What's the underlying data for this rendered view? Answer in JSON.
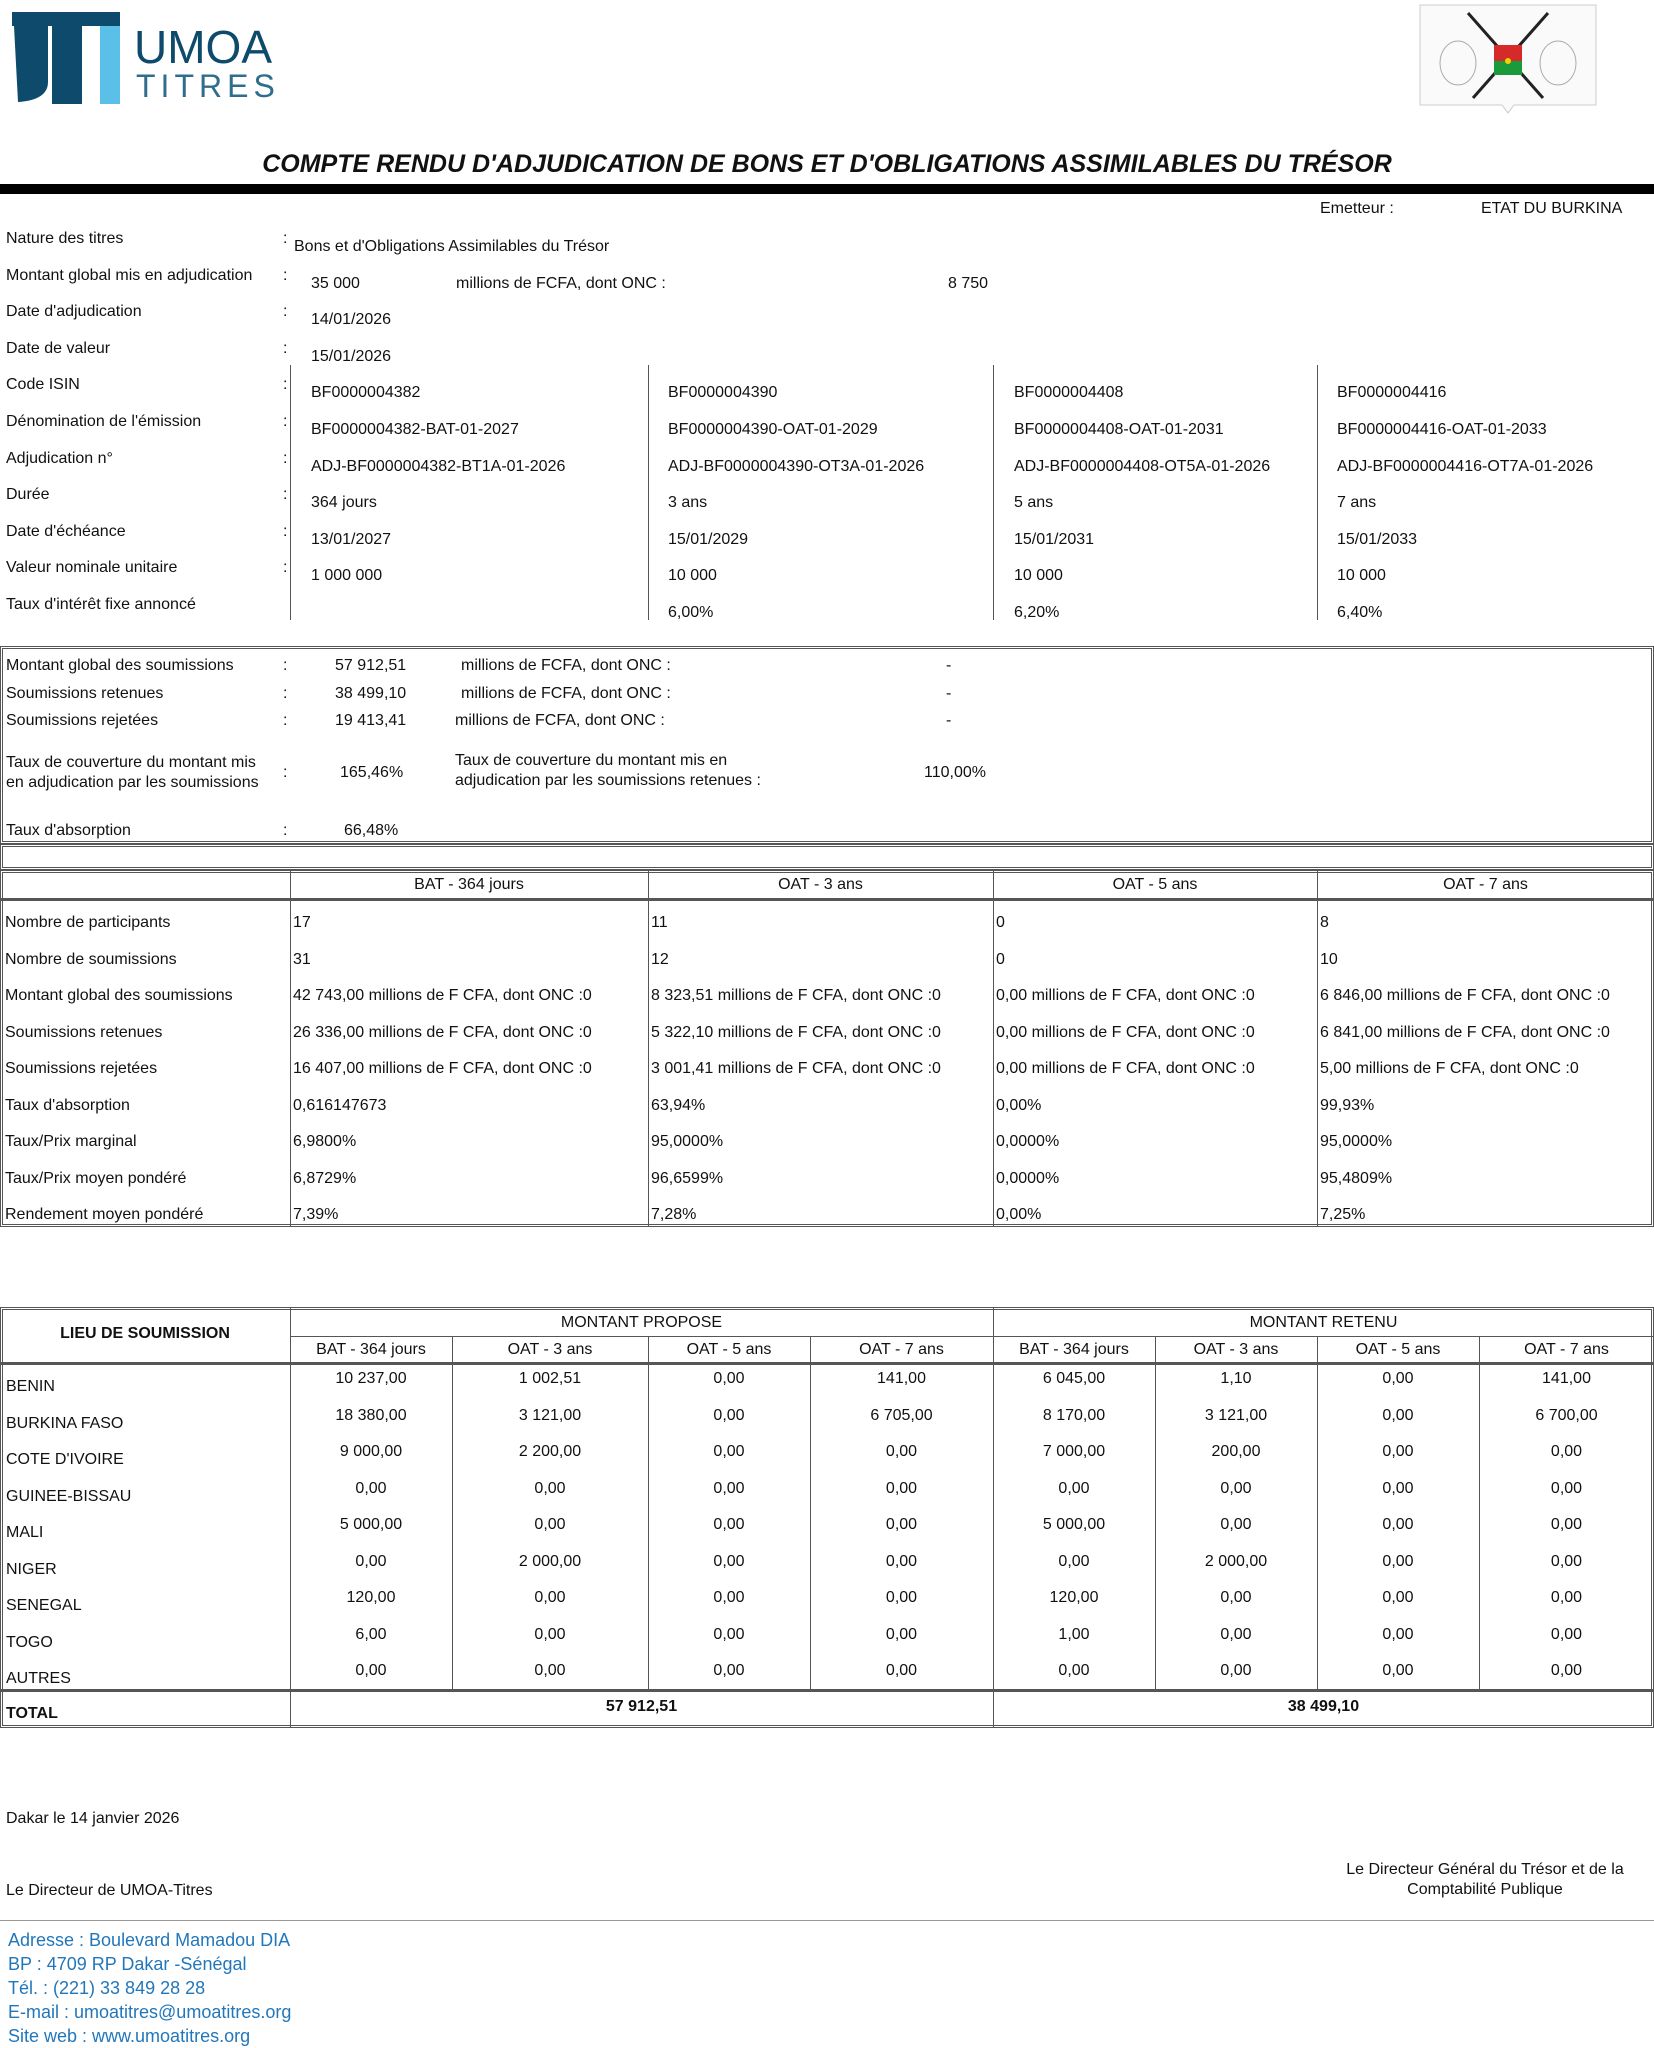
{
  "header": {
    "logo_text_1": "UMOA",
    "logo_text_2": "TITRES",
    "title": "COMPTE RENDU D'ADJUDICATION DE BONS ET D'OBLIGATIONS ASSIMILABLES DU TRÉSOR",
    "emetteur_label": "Emetteur :",
    "emetteur_value": "ETAT DU BURKINA",
    "brand_color": "#0d4a6b",
    "brand_light": "#5bc0e8"
  },
  "info": {
    "nature_label": "Nature des titres",
    "nature_value": "Bons et d'Obligations Assimilables du Trésor",
    "montant_label": "Montant global mis en adjudication",
    "montant_value": "35 000",
    "montant_unit": "millions de FCFA, dont ONC :",
    "montant_onc": "8 750",
    "date_adj_label": "Date d'adjudication",
    "date_adj_value": "14/01/2026",
    "date_val_label": "Date de valeur",
    "date_val_value": "15/01/2026",
    "rows": [
      {
        "label": "Code ISIN",
        "values": [
          "BF0000004382",
          "BF0000004390",
          "BF0000004408",
          "BF0000004416"
        ]
      },
      {
        "label": "Dénomination de l'émission",
        "values": [
          "BF0000004382-BAT-01-2027",
          "BF0000004390-OAT-01-2029",
          "BF0000004408-OAT-01-2031",
          "BF0000004416-OAT-01-2033"
        ]
      },
      {
        "label": "Adjudication n°",
        "values": [
          "ADJ-BF0000004382-BT1A-01-2026",
          "ADJ-BF0000004390-OT3A-01-2026",
          "ADJ-BF0000004408-OT5A-01-2026",
          "ADJ-BF0000004416-OT7A-01-2026"
        ]
      },
      {
        "label": "Durée",
        "values": [
          "364 jours",
          "3 ans",
          "5 ans",
          "7 ans"
        ]
      },
      {
        "label": "Date d'échéance",
        "values": [
          "13/01/2027",
          "15/01/2029",
          "15/01/2031",
          "15/01/2033"
        ]
      },
      {
        "label": "Valeur nominale unitaire",
        "values": [
          "1 000 000",
          "10 000",
          "10 000",
          "10 000"
        ]
      },
      {
        "label": "Taux d'intérêt fixe annoncé",
        "values": [
          "",
          "6,00%",
          "6,20%",
          "6,40%"
        ]
      }
    ]
  },
  "summary": {
    "rows": [
      {
        "label": "Montant global des soumissions",
        "value": "57 912,51",
        "unit": "millions de FCFA, dont ONC :",
        "onc": "-"
      },
      {
        "label": "Soumissions retenues",
        "value": "38 499,10",
        "unit": "millions de FCFA, dont ONC :",
        "onc": "-"
      },
      {
        "label": "Soumissions rejetées",
        "value": "19 413,41",
        "unit": "millions de FCFA, dont ONC :",
        "onc": "-"
      }
    ],
    "couv_label_1": "Taux de couverture du montant mis",
    "couv_label_2": "en adjudication par les soumissions",
    "couv_value": "165,46%",
    "couv_ret_label_1": "Taux de couverture du montant mis en",
    "couv_ret_label_2": "adjudication par les soumissions retenues :",
    "couv_ret_value": "110,00%",
    "absorption_label": "Taux d'absorption",
    "absorption_value": "66,48%"
  },
  "results": {
    "columns": [
      "BAT - 364 jours",
      "OAT - 3 ans",
      "OAT - 5 ans",
      "OAT - 7 ans"
    ],
    "rows": [
      {
        "label": "Nombre de participants",
        "values": [
          "17",
          "11",
          "0",
          "8"
        ]
      },
      {
        "label": "Nombre de soumissions",
        "values": [
          "31",
          "12",
          "0",
          "10"
        ]
      },
      {
        "label": "Montant global des soumissions",
        "values": [
          "42 743,00 millions de F CFA, dont ONC :0",
          "8 323,51 millions de F CFA, dont ONC :0",
          "0,00 millions de F CFA, dont ONC :0",
          "6 846,00 millions de F CFA, dont ONC :0"
        ]
      },
      {
        "label": "Soumissions retenues",
        "values": [
          "26 336,00 millions de F CFA, dont ONC :0",
          "5 322,10 millions de F CFA, dont ONC :0",
          "0,00 millions de F CFA, dont ONC :0",
          "6 841,00 millions de F CFA, dont ONC :0"
        ]
      },
      {
        "label": "Soumissions rejetées",
        "values": [
          "16 407,00 millions de F CFA, dont ONC :0",
          "3 001,41 millions de F CFA, dont ONC :0",
          "0,00 millions de F CFA, dont ONC :0",
          "5,00 millions de F CFA, dont ONC :0"
        ]
      },
      {
        "label": "Taux d'absorption",
        "values": [
          "0,616147673",
          "63,94%",
          "0,00%",
          "99,93%"
        ]
      },
      {
        "label": "Taux/Prix marginal",
        "values": [
          "6,9800%",
          "95,0000%",
          "0,0000%",
          "95,0000%"
        ]
      },
      {
        "label": "Taux/Prix moyen pondéré",
        "values": [
          "6,8729%",
          "96,6599%",
          "0,0000%",
          "95,4809%"
        ]
      },
      {
        "label": "Rendement moyen pondéré",
        "values": [
          "7,39%",
          "7,28%",
          "0,00%",
          "7,25%"
        ]
      }
    ]
  },
  "lieu": {
    "header": "LIEU DE SOUMISSION",
    "group_propose": "MONTANT PROPOSE",
    "group_retenu": "MONTANT RETENU",
    "columns": [
      "BAT - 364 jours",
      "OAT - 3 ans",
      "OAT - 5 ans",
      "OAT - 7 ans",
      "BAT - 364 jours",
      "OAT - 3 ans",
      "OAT - 5 ans",
      "OAT - 7 ans"
    ],
    "rows": [
      {
        "label": "BENIN",
        "values": [
          "10 237,00",
          "1 002,51",
          "0,00",
          "141,00",
          "6 045,00",
          "1,10",
          "0,00",
          "141,00"
        ]
      },
      {
        "label": "BURKINA FASO",
        "values": [
          "18 380,00",
          "3 121,00",
          "0,00",
          "6 705,00",
          "8 170,00",
          "3 121,00",
          "0,00",
          "6 700,00"
        ]
      },
      {
        "label": "COTE D'IVOIRE",
        "values": [
          "9 000,00",
          "2 200,00",
          "0,00",
          "0,00",
          "7 000,00",
          "200,00",
          "0,00",
          "0,00"
        ]
      },
      {
        "label": "GUINEE-BISSAU",
        "values": [
          "0,00",
          "0,00",
          "0,00",
          "0,00",
          "0,00",
          "0,00",
          "0,00",
          "0,00"
        ]
      },
      {
        "label": "MALI",
        "values": [
          "5 000,00",
          "0,00",
          "0,00",
          "0,00",
          "5 000,00",
          "0,00",
          "0,00",
          "0,00"
        ]
      },
      {
        "label": "NIGER",
        "values": [
          "0,00",
          "2 000,00",
          "0,00",
          "0,00",
          "0,00",
          "2 000,00",
          "0,00",
          "0,00"
        ]
      },
      {
        "label": "SENEGAL",
        "values": [
          "120,00",
          "0,00",
          "0,00",
          "0,00",
          "120,00",
          "0,00",
          "0,00",
          "0,00"
        ]
      },
      {
        "label": "TOGO",
        "values": [
          "6,00",
          "0,00",
          "0,00",
          "0,00",
          "1,00",
          "0,00",
          "0,00",
          "0,00"
        ]
      },
      {
        "label": "AUTRES",
        "values": [
          "0,00",
          "0,00",
          "0,00",
          "0,00",
          "0,00",
          "0,00",
          "0,00",
          "0,00"
        ]
      }
    ],
    "total_label": "TOTAL",
    "total_propose": "57 912,51",
    "total_retenu": "38 499,10"
  },
  "footer": {
    "place_date": "Dakar le 14 janvier 2026",
    "sign_left": "Le Directeur de UMOA-Titres",
    "sign_right_1": "Le Directeur Général du Trésor et de la",
    "sign_right_2": "Comptabilité Publique",
    "address": [
      "Adresse : Boulevard Mamadou DIA",
      "BP : 4709 RP Dakar -Sénégal",
      "Tél. : (221) 33 849 28 28",
      "E-mail : umoatitres@umoatitres.org",
      "Site web : www.umoatitres.org"
    ],
    "address_color": "#2277bb"
  }
}
